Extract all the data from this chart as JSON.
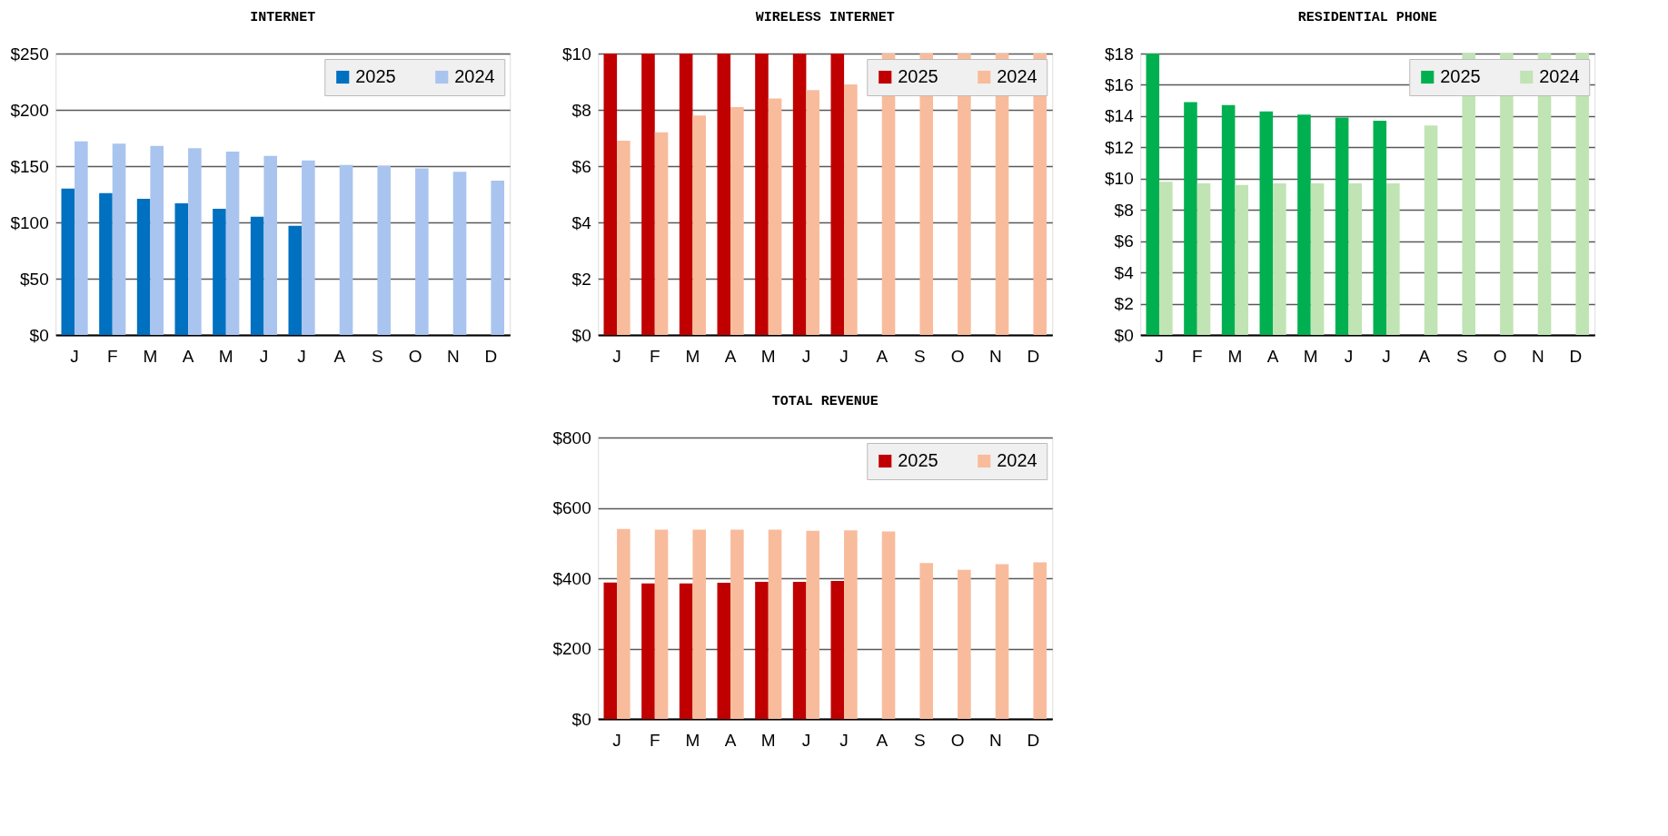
{
  "chart_data": [
    {
      "type": "bar",
      "title": "INTERNET",
      "categories": [
        "J",
        "F",
        "M",
        "A",
        "M",
        "J",
        "J",
        "A",
        "S",
        "O",
        "N",
        "D"
      ],
      "series": [
        {
          "name": "2025",
          "color": "#0070c0",
          "values": [
            130,
            126,
            121,
            117,
            112,
            105,
            97,
            null,
            null,
            null,
            null,
            null
          ]
        },
        {
          "name": "2024",
          "color": "#a9c4ee",
          "values": [
            172,
            170,
            168,
            166,
            163,
            159,
            155,
            151,
            150,
            148,
            145,
            137
          ]
        }
      ],
      "ylim": [
        0,
        250
      ],
      "yticks": [
        {
          "value": 0,
          "label": "$0"
        },
        {
          "value": 50,
          "label": "$50"
        },
        {
          "value": 100,
          "label": "$100"
        },
        {
          "value": 150,
          "label": "$150"
        },
        {
          "value": 200,
          "label": "$200"
        },
        {
          "value": 250,
          "label": "$250"
        }
      ],
      "grid": "y",
      "legend": "top right"
    },
    {
      "type": "bar",
      "title": "WIRELESS INTERNET",
      "categories": [
        "J",
        "F",
        "M",
        "A",
        "M",
        "J",
        "J",
        "A",
        "S",
        "O",
        "N",
        "D"
      ],
      "series": [
        {
          "name": "2025",
          "color": "#c00000",
          "values": [
            10,
            10,
            10,
            10,
            10,
            10,
            10,
            null,
            null,
            null,
            null,
            null
          ]
        },
        {
          "name": "2024",
          "color": "#f8bc9c",
          "values": [
            6.9,
            7.2,
            7.8,
            8.1,
            8.4,
            8.7,
            8.9,
            10,
            10,
            10,
            10,
            10
          ]
        }
      ],
      "ylim": [
        0,
        10
      ],
      "yticks": [
        {
          "value": 0,
          "label": "$0"
        },
        {
          "value": 2,
          "label": "$2"
        },
        {
          "value": 4,
          "label": "$4"
        },
        {
          "value": 6,
          "label": "$6"
        },
        {
          "value": 8,
          "label": "$8"
        },
        {
          "value": 10,
          "label": "$10"
        }
      ],
      "grid": "y",
      "legend": "top right"
    },
    {
      "type": "bar",
      "title": "RESIDENTIAL PHONE",
      "categories": [
        "J",
        "F",
        "M",
        "A",
        "M",
        "J",
        "J",
        "A",
        "S",
        "O",
        "N",
        "D"
      ],
      "series": [
        {
          "name": "2025",
          "color": "#00b050",
          "values": [
            18,
            14.9,
            14.7,
            14.3,
            14.1,
            13.9,
            13.7,
            null,
            null,
            null,
            null,
            null
          ]
        },
        {
          "name": "2024",
          "color": "#c0e4b4",
          "values": [
            9.8,
            9.7,
            9.6,
            9.7,
            9.7,
            9.7,
            9.7,
            13.4,
            18,
            18,
            18,
            18
          ]
        }
      ],
      "ylim": [
        0,
        18
      ],
      "yticks": [
        {
          "value": 0,
          "label": "$0"
        },
        {
          "value": 2,
          "label": "$2"
        },
        {
          "value": 4,
          "label": "$4"
        },
        {
          "value": 6,
          "label": "$6"
        },
        {
          "value": 8,
          "label": "$8"
        },
        {
          "value": 10,
          "label": "$10"
        },
        {
          "value": 12,
          "label": "$12"
        },
        {
          "value": 14,
          "label": "$14"
        },
        {
          "value": 16,
          "label": "$16"
        },
        {
          "value": 18,
          "label": "$18"
        }
      ],
      "grid": "y",
      "legend": "top right"
    },
    {
      "type": "bar",
      "title": "TOTAL REVENUE",
      "categories": [
        "J",
        "F",
        "M",
        "A",
        "M",
        "J",
        "J",
        "A",
        "S",
        "O",
        "N",
        "D"
      ],
      "series": [
        {
          "name": "2025",
          "color": "#c00000",
          "values": [
            388,
            385,
            385,
            387,
            390,
            390,
            392,
            null,
            null,
            null,
            null,
            null
          ]
        },
        {
          "name": "2024",
          "color": "#f8bc9c",
          "values": [
            540,
            538,
            538,
            538,
            538,
            535,
            536,
            533,
            443,
            424,
            440,
            445
          ]
        }
      ],
      "ylim": [
        0,
        800
      ],
      "yticks": [
        {
          "value": 0,
          "label": "$0"
        },
        {
          "value": 200,
          "label": "$200"
        },
        {
          "value": 400,
          "label": "$400"
        },
        {
          "value": 600,
          "label": "$600"
        },
        {
          "value": 800,
          "label": "$800"
        }
      ],
      "grid": "y",
      "legend": "top right"
    }
  ]
}
